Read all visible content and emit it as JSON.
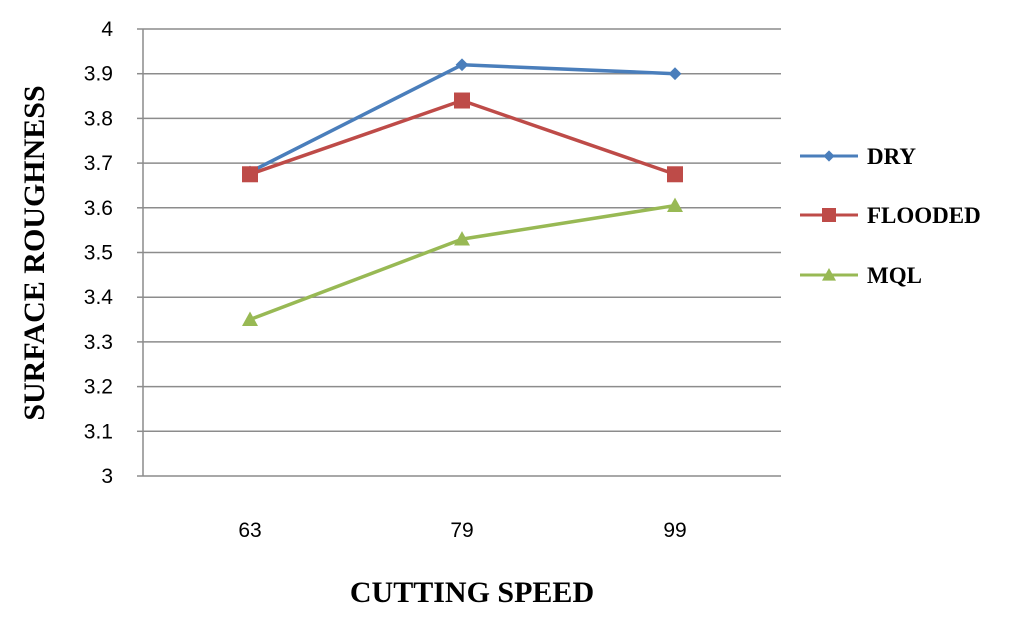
{
  "chart_data": {
    "type": "line",
    "title": "",
    "xlabel": "CUTTING SPEED",
    "ylabel": "SURFACE ROUGHNESS",
    "categories": [
      "63",
      "79",
      "99"
    ],
    "ylim": [
      3,
      4
    ],
    "yticks": [
      "3",
      "3.1",
      "3.2",
      "3.3",
      "3.4",
      "3.5",
      "3.6",
      "3.7",
      "3.8",
      "3.9",
      "4"
    ],
    "grid": true,
    "legend_position": "right",
    "series": [
      {
        "name": "DRY",
        "values": [
          3.68,
          3.92,
          3.9
        ],
        "color": "#4a7ebb",
        "marker": "diamond"
      },
      {
        "name": "FLOODED",
        "values": [
          3.675,
          3.84,
          3.675
        ],
        "color": "#be4b48",
        "marker": "square"
      },
      {
        "name": "MQL",
        "values": [
          3.35,
          3.53,
          3.605
        ],
        "color": "#98b954",
        "marker": "triangle"
      }
    ]
  }
}
